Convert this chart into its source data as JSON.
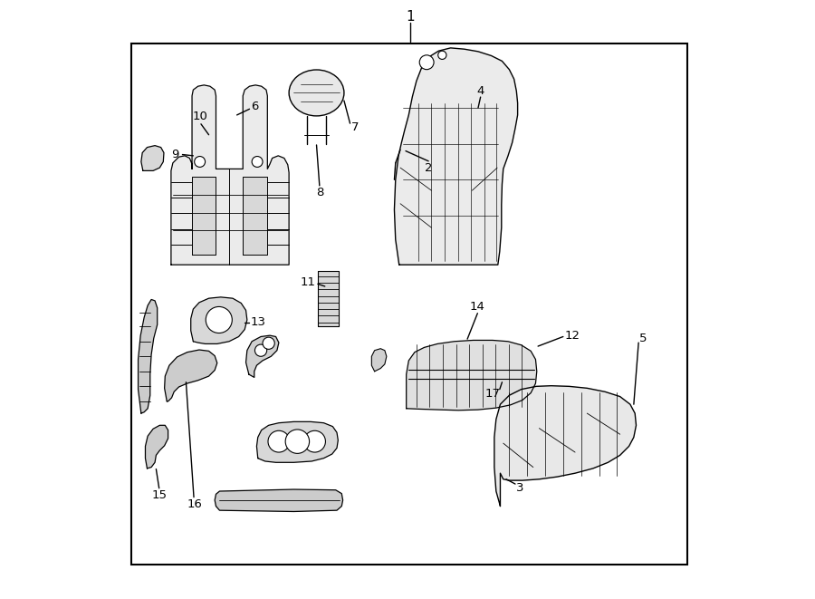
{
  "background_color": "#ffffff",
  "border_color": "#000000",
  "line_color": "#000000",
  "fig_width": 9.0,
  "fig_height": 6.61,
  "dpi": 100
}
